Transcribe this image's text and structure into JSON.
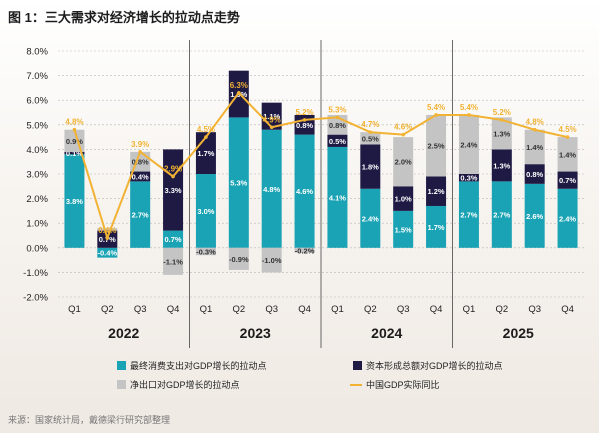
{
  "title": "图 1：三大需求对经济增长的拉动点走势",
  "source": "来源：国家统计局，戴德梁行研究部整理",
  "colors": {
    "consumption": "#1aa3b4",
    "capital": "#1e1a44",
    "net_exports": "#c4c4c4",
    "gdp": "#f2b233",
    "grid": "#b8b8b8",
    "year_separator": "#444444"
  },
  "chart_data": {
    "type": "bar",
    "stacked": true,
    "categories": [
      "Q1",
      "Q2",
      "Q3",
      "Q4",
      "Q1",
      "Q2",
      "Q3",
      "Q4",
      "Q1",
      "Q2",
      "Q3",
      "Q4",
      "Q1",
      "Q2",
      "Q3",
      "Q4"
    ],
    "years": [
      "2022",
      "2023",
      "2024",
      "2025"
    ],
    "ylim": [
      -2.0,
      8.0
    ],
    "yticks": [
      "8.0%",
      "7.0%",
      "6.0%",
      "5.0%",
      "4.0%",
      "3.0%",
      "2.0%",
      "1.0%",
      "0.0%",
      "-1.0%",
      "-2.0%"
    ],
    "ytick_values": [
      8,
      7,
      6,
      5,
      4,
      3,
      2,
      1,
      0,
      -1,
      -2
    ],
    "legend_position": "bottom",
    "series": [
      {
        "name": "最终消费支出对GDP增长的拉动点",
        "key": "consumption",
        "values": [
          3.8,
          -0.4,
          2.7,
          0.7,
          3.0,
          5.3,
          4.8,
          4.6,
          4.1,
          2.4,
          1.5,
          1.7,
          2.7,
          2.7,
          2.6,
          2.4
        ],
        "labels": [
          "3.8%",
          "-0.4%",
          "2.7%",
          "0.7%",
          "3.0%",
          "5.3%",
          "4.8%",
          "4.6%",
          "4.1%",
          "2.4%",
          "1.5%",
          "1.7%",
          "2.7%",
          "2.7%",
          "2.6%",
          "2.4%"
        ]
      },
      {
        "name": "资本形成总额对GDP增长的拉动点",
        "key": "capital",
        "values": [
          0.1,
          0.7,
          0.4,
          3.3,
          1.7,
          1.9,
          1.1,
          0.8,
          0.5,
          1.8,
          1.0,
          1.2,
          0.3,
          1.3,
          0.8,
          0.7
        ],
        "labels": [
          "0.1%",
          "0.7%",
          "0.4%",
          "3.3%",
          "1.7%",
          "1.9%",
          "1.1%",
          "0.8%",
          "0.5%",
          "1.8%",
          "1.0%",
          "1.2%",
          "0.3%",
          "1.3%",
          "0.8%",
          "0.7%"
        ]
      },
      {
        "name": "净出口对GDP增长的拉动点",
        "key": "net_exports",
        "values": [
          0.9,
          0.1,
          0.8,
          -1.1,
          -0.3,
          -0.9,
          -1.0,
          -0.2,
          0.8,
          0.5,
          2.0,
          2.5,
          2.4,
          1.3,
          1.4,
          1.4
        ],
        "labels": [
          "0.9%",
          "",
          "0.8%",
          "-1.1%",
          "-0.3%",
          "-0.9%",
          "-1.0%",
          "-0.2%",
          "0.8%",
          "0.5%",
          "2.0%",
          "2.5%",
          "2.4%",
          "1.3%",
          "1.4%",
          "1.4%"
        ]
      }
    ],
    "line": {
      "name": "中国GDP实际同比",
      "key": "gdp",
      "values": [
        4.8,
        0.4,
        3.9,
        2.9,
        4.5,
        6.3,
        4.9,
        5.2,
        5.3,
        4.7,
        4.6,
        5.4,
        5.4,
        5.2,
        4.8,
        4.5
      ],
      "labels": [
        "4.8%",
        "0.4%",
        "3.9%",
        "2.9%",
        "4.5%",
        "6.3%",
        "4.9%",
        "5.2%",
        "5.3%",
        "4.7%",
        "4.6%",
        "5.4%",
        "5.4%",
        "5.2%",
        "4.8%",
        "4.5%"
      ]
    }
  }
}
